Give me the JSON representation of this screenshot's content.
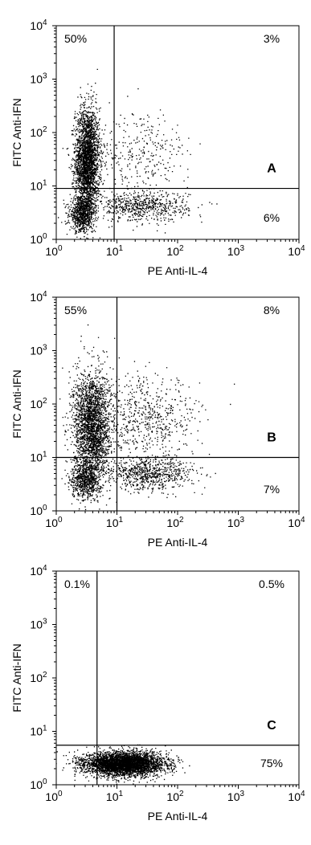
{
  "chart_data": [
    {
      "type": "scatter",
      "panel_label": "A",
      "xlabel": "PE Anti-IL-4",
      "ylabel": "FITC Anti-IFN",
      "x_scale": "log",
      "y_scale": "log",
      "xlim": [
        1,
        10000
      ],
      "ylim": [
        1,
        10000
      ],
      "x_ticks": [
        {
          "base": "10",
          "exp": "0"
        },
        {
          "base": "10",
          "exp": "1"
        },
        {
          "base": "10",
          "exp": "2"
        },
        {
          "base": "10",
          "exp": "3"
        },
        {
          "base": "10",
          "exp": "4"
        }
      ],
      "y_ticks": [
        {
          "base": "10",
          "exp": "0"
        },
        {
          "base": "10",
          "exp": "1"
        },
        {
          "base": "10",
          "exp": "2"
        },
        {
          "base": "10",
          "exp": "3"
        },
        {
          "base": "10",
          "exp": "4"
        }
      ],
      "gate": {
        "x": 9,
        "y": 9
      },
      "quadrants": {
        "upper_left": "50%",
        "upper_right": "3%",
        "lower_right": "6%"
      },
      "populations": [
        {
          "x_center": 3.2,
          "y_center": 30,
          "x_spread": 0.1,
          "y_spread": 0.5,
          "count": 2600
        },
        {
          "x_center": 2.6,
          "y_center": 3,
          "x_spread": 0.1,
          "y_spread": 0.16,
          "count": 700
        },
        {
          "x_center": 25,
          "y_center": 4.2,
          "x_spread": 0.38,
          "y_spread": 0.14,
          "count": 650
        },
        {
          "x_center": 25,
          "y_center": 40,
          "x_spread": 0.4,
          "y_spread": 0.4,
          "count": 300
        }
      ],
      "grid": false
    },
    {
      "type": "scatter",
      "panel_label": "B",
      "xlabel": "PE Anti-IL-4",
      "ylabel": "FITC Anti-IFN",
      "x_scale": "log",
      "y_scale": "log",
      "xlim": [
        1,
        10000
      ],
      "ylim": [
        1,
        10000
      ],
      "x_ticks": [
        {
          "base": "10",
          "exp": "0"
        },
        {
          "base": "10",
          "exp": "1"
        },
        {
          "base": "10",
          "exp": "2"
        },
        {
          "base": "10",
          "exp": "3"
        },
        {
          "base": "10",
          "exp": "4"
        }
      ],
      "y_ticks": [
        {
          "base": "10",
          "exp": "0"
        },
        {
          "base": "10",
          "exp": "1"
        },
        {
          "base": "10",
          "exp": "2"
        },
        {
          "base": "10",
          "exp": "3"
        },
        {
          "base": "10",
          "exp": "4"
        }
      ],
      "gate": {
        "x": 10,
        "y": 10
      },
      "quadrants": {
        "upper_left": "55%",
        "upper_right": "8%",
        "lower_right": "7%"
      },
      "populations": [
        {
          "x_center": 3.8,
          "y_center": 40,
          "x_spread": 0.15,
          "y_spread": 0.5,
          "count": 2400
        },
        {
          "x_center": 3,
          "y_center": 4,
          "x_spread": 0.12,
          "y_spread": 0.18,
          "count": 700
        },
        {
          "x_center": 35,
          "y_center": 5,
          "x_spread": 0.35,
          "y_spread": 0.15,
          "count": 700
        },
        {
          "x_center": 30,
          "y_center": 50,
          "x_spread": 0.45,
          "y_spread": 0.4,
          "count": 650
        }
      ],
      "grid": false
    },
    {
      "type": "scatter",
      "panel_label": "C",
      "xlabel": "PE Anti-IL-4",
      "ylabel": "FITC Anti-IFN",
      "x_scale": "log",
      "y_scale": "log",
      "xlim": [
        1,
        10000
      ],
      "ylim": [
        1,
        10000
      ],
      "x_ticks": [
        {
          "base": "10",
          "exp": "0"
        },
        {
          "base": "10",
          "exp": "1"
        },
        {
          "base": "10",
          "exp": "2"
        },
        {
          "base": "10",
          "exp": "3"
        },
        {
          "base": "10",
          "exp": "4"
        }
      ],
      "y_ticks": [
        {
          "base": "10",
          "exp": "0"
        },
        {
          "base": "10",
          "exp": "1"
        },
        {
          "base": "10",
          "exp": "2"
        },
        {
          "base": "10",
          "exp": "3"
        },
        {
          "base": "10",
          "exp": "4"
        }
      ],
      "gate": {
        "x": 4.7,
        "y": 5.5
      },
      "quadrants": {
        "upper_left": "0.1%",
        "upper_right": "0.5%",
        "lower_right": "75%"
      },
      "populations": [
        {
          "x_center": 13,
          "y_center": 2.5,
          "x_spread": 0.32,
          "y_spread": 0.11,
          "count": 4200
        }
      ],
      "grid": false
    }
  ]
}
